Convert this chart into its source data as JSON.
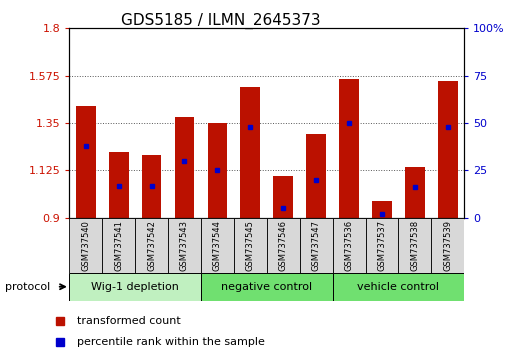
{
  "title": "GDS5185 / ILMN_2645373",
  "samples": [
    "GSM737540",
    "GSM737541",
    "GSM737542",
    "GSM737543",
    "GSM737544",
    "GSM737545",
    "GSM737546",
    "GSM737547",
    "GSM737536",
    "GSM737537",
    "GSM737538",
    "GSM737539"
  ],
  "bar_values": [
    1.43,
    1.21,
    1.2,
    1.38,
    1.35,
    1.52,
    1.1,
    1.3,
    1.56,
    0.98,
    1.14,
    1.55
  ],
  "percentile_values": [
    38,
    17,
    17,
    30,
    25,
    48,
    5,
    20,
    50,
    2,
    16,
    48
  ],
  "group_defs": [
    {
      "start": 0,
      "end": 3,
      "color": "#c0f0c0",
      "label": "Wig-1 depletion"
    },
    {
      "start": 4,
      "end": 7,
      "color": "#70e070",
      "label": "negative control"
    },
    {
      "start": 8,
      "end": 11,
      "color": "#70e070",
      "label": "vehicle control"
    }
  ],
  "y_min": 0.9,
  "y_max": 1.8,
  "y_ticks": [
    0.9,
    1.125,
    1.35,
    1.575,
    1.8
  ],
  "y_tick_labels": [
    "0.9",
    "1.125",
    "1.35",
    "1.575",
    "1.8"
  ],
  "y2_ticks": [
    0,
    25,
    50,
    75,
    100
  ],
  "y2_tick_labels": [
    "0",
    "25",
    "50",
    "75",
    "100%"
  ],
  "bar_color": "#bb1100",
  "percentile_color": "#0000cc",
  "grid_color": "#555555",
  "left_axis_color": "#cc1100",
  "right_axis_color": "#0000cc",
  "sample_box_color": "#d8d8d8",
  "title_fontsize": 11,
  "axis_fontsize": 8,
  "sample_fontsize": 6,
  "group_fontsize": 8,
  "legend_fontsize": 8
}
